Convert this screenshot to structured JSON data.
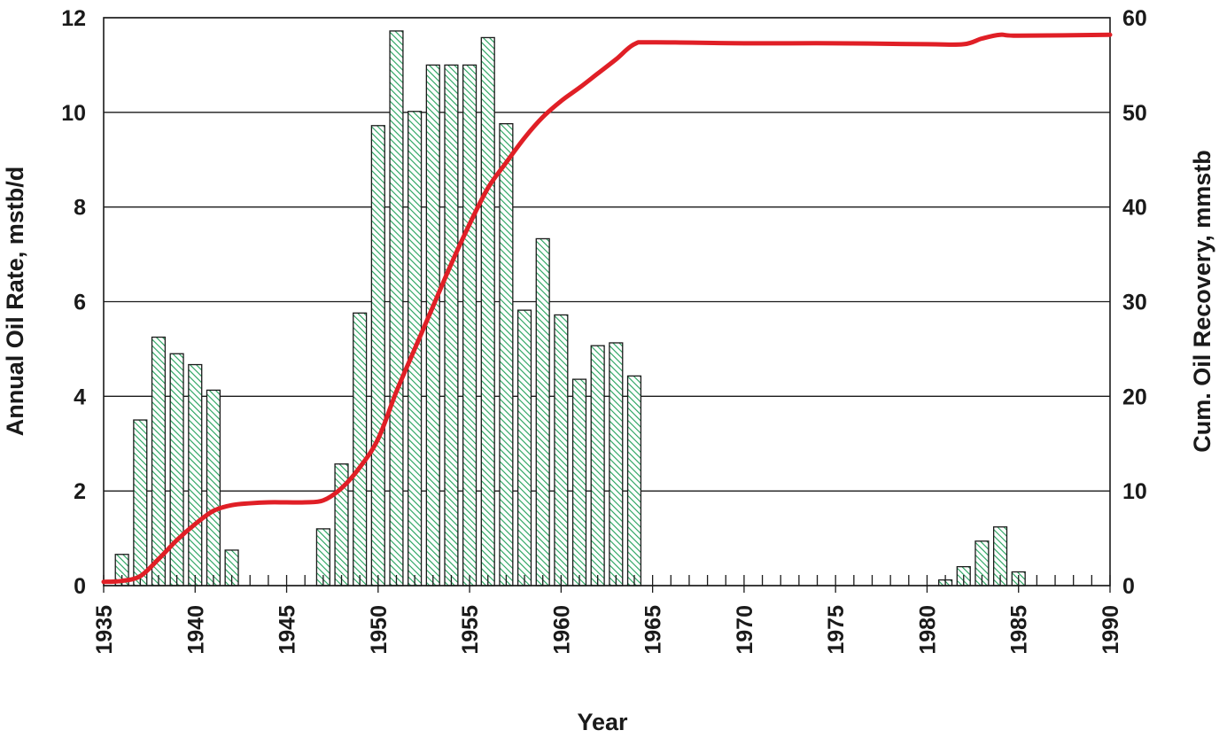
{
  "chart_data": {
    "type": "bar",
    "title": "",
    "xlabel": "Year",
    "ylabel": "Annual Oil Rate, mstb/d",
    "y2label": "Cum. Oil Recovery, mmstb",
    "xlim": [
      1935,
      1990
    ],
    "ylim": [
      0,
      12
    ],
    "y2lim": [
      0,
      60
    ],
    "grid": true,
    "x_ticks": [
      "1935",
      "1940",
      "1945",
      "1950",
      "1955",
      "1960",
      "1965",
      "1970",
      "1975",
      "1980",
      "1985",
      "1990"
    ],
    "y_ticks": [
      "0",
      "2",
      "4",
      "6",
      "8",
      "10",
      "12"
    ],
    "y2_ticks": [
      "0",
      "10",
      "20",
      "30",
      "40",
      "50",
      "60"
    ],
    "colors": {
      "bar_hatch": "#22a05a",
      "line": "#e01f26",
      "grid": "#1a1a1a"
    },
    "series": [
      {
        "type": "bar",
        "axis": "left",
        "x": [
          1936,
          1937,
          1938,
          1939,
          1940,
          1941,
          1942,
          1947,
          1948,
          1949,
          1950,
          1951,
          1952,
          1953,
          1954,
          1955,
          1956,
          1957,
          1958,
          1959,
          1960,
          1961,
          1962,
          1963,
          1964,
          1981,
          1982,
          1983,
          1984,
          1985
        ],
        "values": [
          0.66,
          3.5,
          5.25,
          4.9,
          4.67,
          4.13,
          0.75,
          1.2,
          2.57,
          5.76,
          9.72,
          11.72,
          10.02,
          11.0,
          11.0,
          11.0,
          11.58,
          9.76,
          5.82,
          7.33,
          5.72,
          4.36,
          5.07,
          5.13,
          4.43,
          0.12,
          0.4,
          0.94,
          1.24,
          0.29
        ]
      },
      {
        "type": "line",
        "axis": "right",
        "x": [
          1935,
          1936,
          1937,
          1938,
          1939,
          1940,
          1941,
          1942,
          1943,
          1944,
          1945,
          1946,
          1947,
          1948,
          1949,
          1950,
          1951,
          1952,
          1953,
          1954,
          1955,
          1956,
          1957,
          1958,
          1959,
          1960,
          1961,
          1962,
          1963,
          1964,
          1965,
          1970,
          1975,
          1980,
          1982,
          1983,
          1984,
          1985,
          1990
        ],
        "values": [
          0.4,
          0.5,
          1.0,
          2.8,
          4.8,
          6.5,
          7.9,
          8.5,
          8.7,
          8.8,
          8.8,
          8.8,
          9.0,
          10.3,
          12.5,
          15.5,
          20.5,
          25.0,
          29.5,
          34.0,
          38.2,
          42.0,
          44.7,
          47.3,
          49.5,
          51.2,
          52.6,
          54.1,
          55.6,
          57.2,
          57.4,
          57.3,
          57.3,
          57.2,
          57.2,
          57.8,
          58.2,
          58.1,
          58.2
        ]
      }
    ]
  }
}
